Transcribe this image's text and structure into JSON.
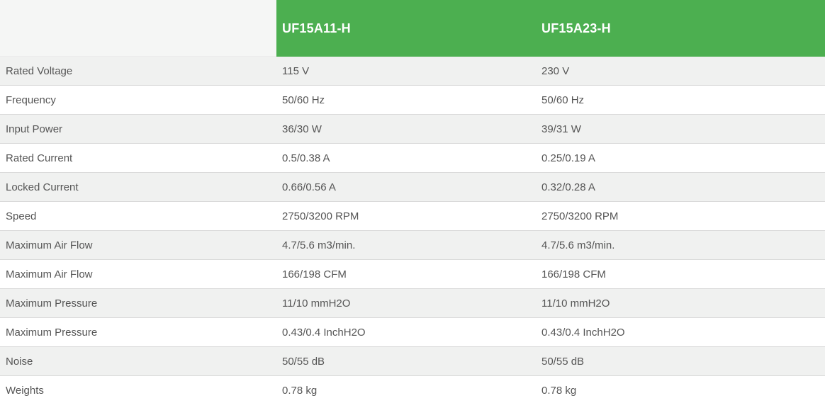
{
  "table": {
    "columns": [
      {
        "label": ""
      },
      {
        "label": "UF15A11-H"
      },
      {
        "label": "UF15A23-H"
      }
    ],
    "rows": [
      {
        "label": "Rated Voltage",
        "values": [
          "115 V",
          "230 V"
        ]
      },
      {
        "label": "Frequency",
        "values": [
          "50/60 Hz",
          "50/60 Hz"
        ]
      },
      {
        "label": "Input Power",
        "values": [
          "36/30 W",
          "39/31 W"
        ]
      },
      {
        "label": "Rated Current",
        "values": [
          "0.5/0.38 A",
          "0.25/0.19 A"
        ]
      },
      {
        "label": "Locked Current",
        "values": [
          "0.66/0.56 A",
          "0.32/0.28 A"
        ]
      },
      {
        "label": "Speed",
        "values": [
          "2750/3200 RPM",
          "2750/3200 RPM"
        ]
      },
      {
        "label": "Maximum Air Flow",
        "values": [
          "4.7/5.6 m3/min.",
          "4.7/5.6 m3/min."
        ]
      },
      {
        "label": "Maximum Air Flow",
        "values": [
          "166/198 CFM",
          "166/198 CFM"
        ]
      },
      {
        "label": "Maximum Pressure",
        "values": [
          "11/10 mmH2O",
          "11/10 mmH2O"
        ]
      },
      {
        "label": "Maximum Pressure",
        "values": [
          "0.43/0.4 InchH2O",
          "0.43/0.4 InchH2O"
        ]
      },
      {
        "label": "Noise",
        "values": [
          "50/55 dB",
          "50/55 dB"
        ]
      },
      {
        "label": "Weights",
        "values": [
          "0.78 kg",
          "0.78 kg"
        ]
      }
    ],
    "colors": {
      "header_bg": "#4caf50",
      "header_text": "#ffffff",
      "corner_bg": "#f5f6f5",
      "stripe_row_bg": "#f0f1f0",
      "white_row_bg": "#ffffff",
      "row_border": "#dadada",
      "cell_text": "#555555"
    }
  }
}
